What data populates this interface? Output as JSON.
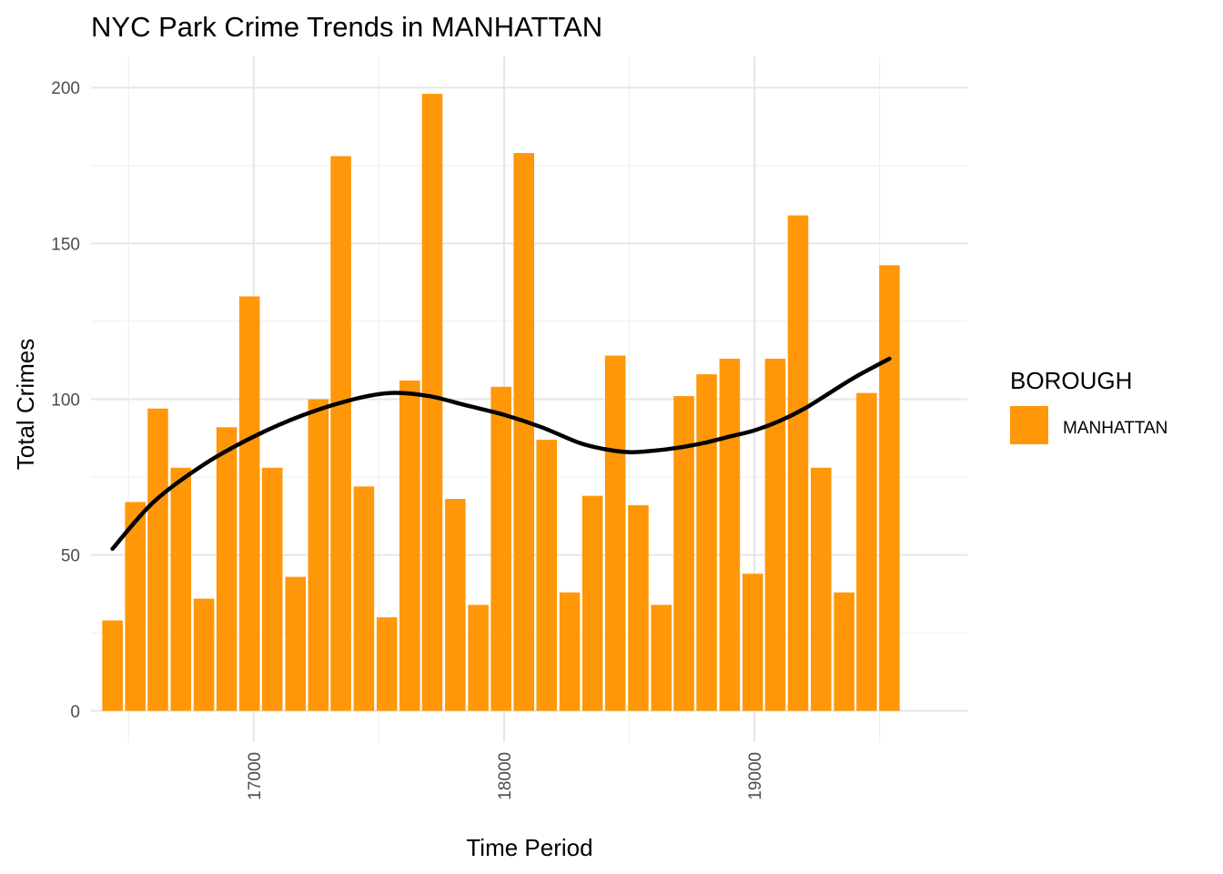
{
  "chart_data": {
    "type": "bar",
    "title": "NYC Park Crime Trends in MANHATTAN",
    "xlabel": "Time Period",
    "ylabel": "Total Crimes",
    "xlim": [
      16350,
      19850
    ],
    "ylim": [
      -10,
      210
    ],
    "x_ticks": [
      17000,
      18000,
      19000
    ],
    "y_ticks": [
      0,
      50,
      100,
      150,
      200
    ],
    "bar_width": 82,
    "bar_color": "#FF9709",
    "grid": true,
    "legend": {
      "title": "BOROUGH",
      "position": "right",
      "entries": [
        "MANHATTAN"
      ]
    },
    "series": [
      {
        "name": "MANHATTAN",
        "x": [
          16436,
          16527,
          16617,
          16709,
          16801,
          16892,
          16983,
          17074,
          17167,
          17258,
          17348,
          17440,
          17532,
          17623,
          17713,
          17805,
          17897,
          17988,
          18079,
          18170,
          18262,
          18353,
          18444,
          18536,
          18628,
          18718,
          18809,
          18901,
          18993,
          19083,
          19174,
          19266,
          19358,
          19448,
          19539
        ],
        "values": [
          29,
          67,
          97,
          78,
          36,
          91,
          133,
          78,
          43,
          100,
          178,
          72,
          30,
          106,
          198,
          68,
          34,
          104,
          179,
          87,
          38,
          69,
          114,
          66,
          34,
          101,
          108,
          113,
          44,
          113,
          159,
          78,
          38,
          102,
          143
        ]
      }
    ],
    "trend": {
      "type": "smooth",
      "color": "#000000",
      "x": [
        16436,
        16600,
        16800,
        17000,
        17200,
        17400,
        17550,
        17700,
        17850,
        18000,
        18150,
        18300,
        18400,
        18500,
        18600,
        18700,
        18800,
        18900,
        19000,
        19100,
        19200,
        19300,
        19400,
        19539
      ],
      "y": [
        52,
        67,
        79,
        88,
        95,
        100,
        102,
        101,
        98,
        95,
        91,
        86,
        84,
        83,
        83.5,
        84.5,
        86,
        88,
        90,
        93,
        97,
        102,
        107,
        113
      ]
    }
  }
}
